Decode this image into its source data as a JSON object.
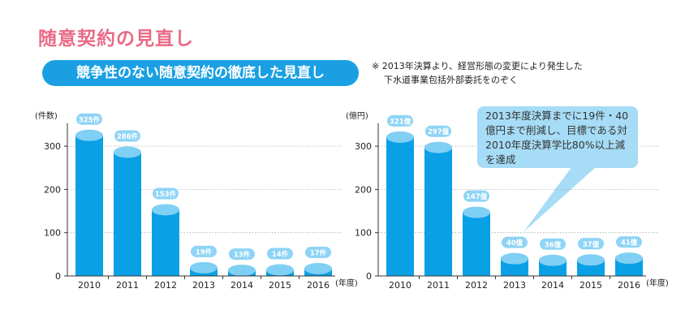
{
  "title": "随意契約の見直し",
  "banner": "競争性のない随意契約の徹底した見直し",
  "note": {
    "line1": "※ 2013年決算より、経営形態の変更により発生した",
    "line2": "下水道事業包括外部委託をのぞく"
  },
  "callout": "2013年度決算までに19件・40億円まで削減し、目標である対2010年度決算学比80%以上減を達成",
  "colors": {
    "bar": "#0aa0e6",
    "bar_top": "#80cff4",
    "label_pill": "#8ed4f6",
    "title": "#e96a86",
    "banner": "#1aa0e2"
  },
  "chart_data": [
    {
      "type": "bar",
      "ylabel": "(件数)",
      "xlabel": "(年度)",
      "categories": [
        "2010",
        "2011",
        "2012",
        "2013",
        "2014",
        "2015",
        "2016"
      ],
      "values": [
        325,
        286,
        153,
        19,
        13,
        14,
        17
      ],
      "data_labels": [
        "325件",
        "286件",
        "153件",
        "19件",
        "13件",
        "14件",
        "17件"
      ],
      "yticks": [
        0,
        100,
        200,
        300
      ],
      "ylim": [
        0,
        340
      ],
      "grid": true
    },
    {
      "type": "bar",
      "ylabel": "(億円)",
      "xlabel": "(年度)",
      "categories": [
        "2010",
        "2011",
        "2012",
        "2013",
        "2014",
        "2015",
        "2016"
      ],
      "values": [
        321,
        297,
        147,
        40,
        36,
        37,
        41
      ],
      "data_labels": [
        "321億",
        "297億",
        "147億",
        "40億",
        "36億",
        "37億",
        "41億"
      ],
      "yticks": [
        0,
        100,
        200,
        300
      ],
      "ylim": [
        0,
        340
      ],
      "grid": true
    }
  ]
}
